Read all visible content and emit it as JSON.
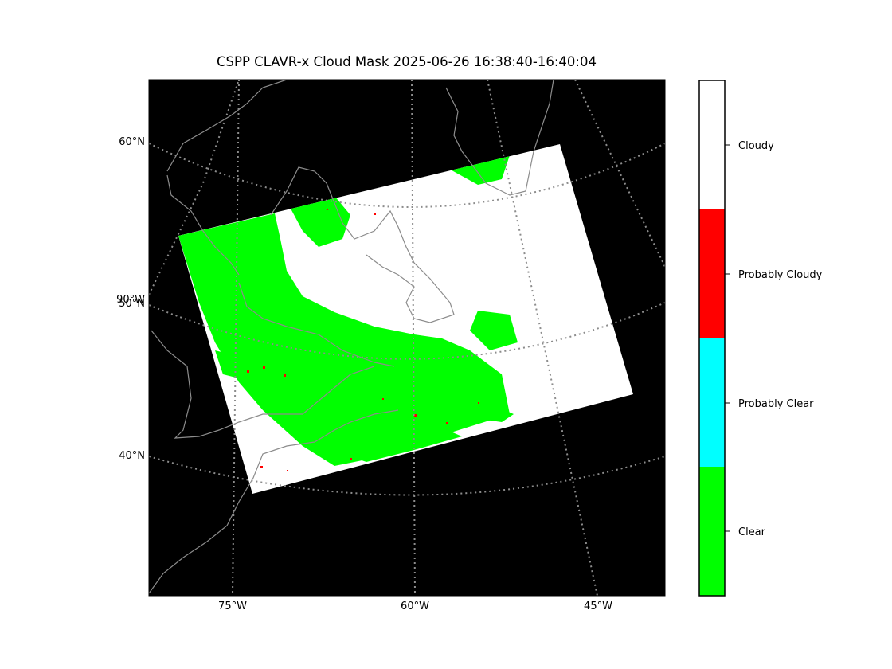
{
  "title": "CSPP CLAVR-x Cloud Mask 2025-06-26 16:38:40-16:40:04",
  "map": {
    "background": "#000000",
    "coastline_color": "#8c8c8c",
    "gridline_color": "#8c8c8c",
    "lat_labels": [
      "60°N",
      "50°N",
      "40°N"
    ],
    "lat_label_extra": "90°W",
    "lon_labels": [
      "75°W",
      "60°W",
      "45°W"
    ]
  },
  "colorbar": {
    "classes": [
      {
        "label": "Cloudy",
        "color": "#ffffff"
      },
      {
        "label": "Probably Cloudy",
        "color": "#ff0000"
      },
      {
        "label": "Probably Clear",
        "color": "#00ffff"
      },
      {
        "label": "Clear",
        "color": "#00ff00"
      }
    ]
  }
}
